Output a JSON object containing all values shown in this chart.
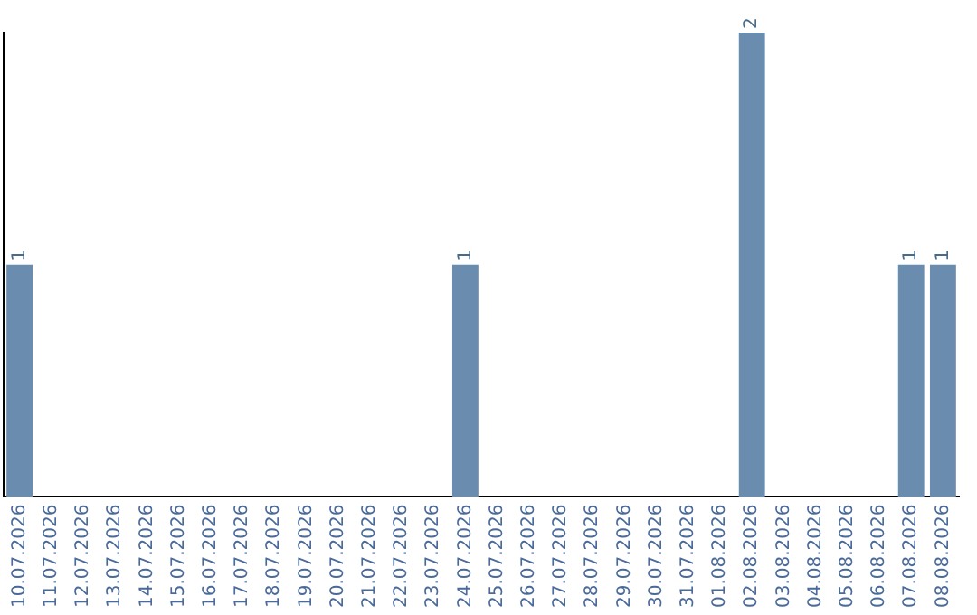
{
  "chart_data": {
    "type": "bar",
    "categories": [
      "10.07.2026",
      "11.07.2026",
      "12.07.2026",
      "13.07.2026",
      "14.07.2026",
      "15.07.2026",
      "16.07.2026",
      "17.07.2026",
      "18.07.2026",
      "19.07.2026",
      "20.07.2026",
      "21.07.2026",
      "22.07.2026",
      "23.07.2026",
      "24.07.2026",
      "25.07.2026",
      "26.07.2026",
      "27.07.2026",
      "28.07.2026",
      "29.07.2026",
      "30.07.2026",
      "31.07.2026",
      "01.08.2026",
      "02.08.2026",
      "03.08.2026",
      "04.08.2026",
      "05.08.2026",
      "06.08.2026",
      "07.08.2026",
      "08.08.2026"
    ],
    "values": [
      1,
      0,
      0,
      0,
      0,
      0,
      0,
      0,
      0,
      0,
      0,
      0,
      0,
      0,
      1,
      0,
      0,
      0,
      0,
      0,
      0,
      0,
      0,
      2,
      0,
      0,
      0,
      0,
      1,
      1
    ],
    "value_labels": [
      "1",
      null,
      null,
      null,
      null,
      null,
      null,
      null,
      null,
      null,
      null,
      null,
      null,
      null,
      "1",
      null,
      null,
      null,
      null,
      null,
      null,
      null,
      null,
      "2",
      null,
      null,
      null,
      null,
      "1",
      "1"
    ],
    "color": "#6a8caf",
    "tick_labels": "x",
    "grid": false,
    "legend": false
  }
}
